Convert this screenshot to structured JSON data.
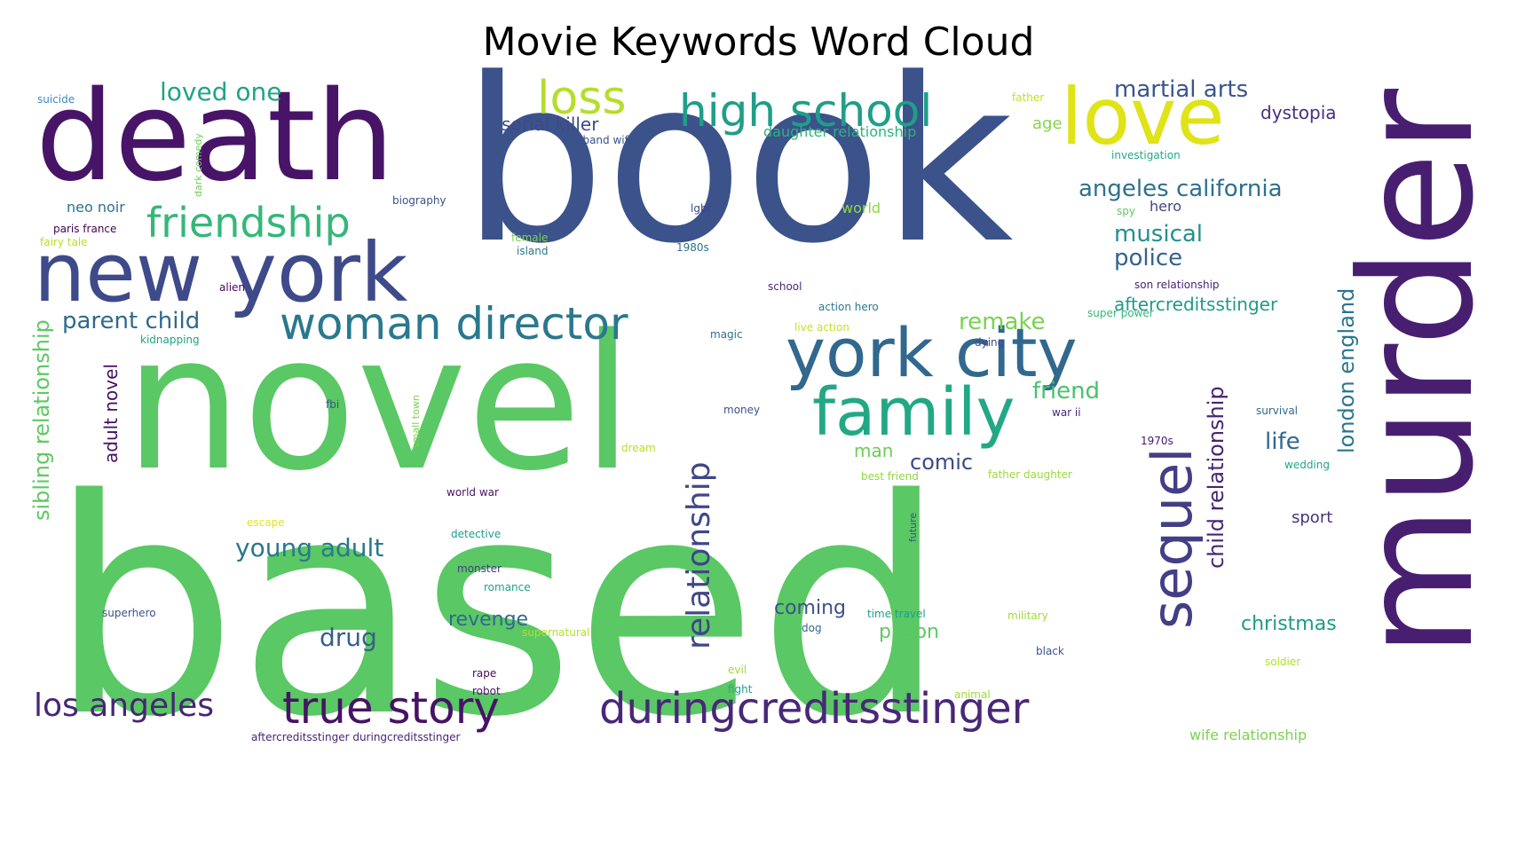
{
  "title": "Movie Keywords Word Cloud",
  "palette": {
    "purple": "#440154",
    "darkpurple": "#46327e",
    "blue": "#365c8d",
    "teal": "#277f8e",
    "tealgreen": "#1fa187",
    "green": "#4ac16d",
    "lime": "#a0da39",
    "yellow": "#e4e419"
  },
  "words": [
    {
      "text": "based",
      "color": "#5ac864"
    },
    {
      "text": "novel",
      "color": "#5ac864"
    },
    {
      "text": "book",
      "color": "#3b528b"
    },
    {
      "text": "murder",
      "color": "#481f70"
    },
    {
      "text": "death",
      "color": "#481467"
    },
    {
      "text": "new york",
      "color": "#3e4a89"
    },
    {
      "text": "love",
      "color": "#dfe318"
    },
    {
      "text": "york city",
      "color": "#31688e"
    },
    {
      "text": "family",
      "color": "#22a884"
    },
    {
      "text": "woman director",
      "color": "#2a788e"
    },
    {
      "text": "sequel",
      "color": "#433e85"
    },
    {
      "text": "relationship",
      "color": "#404688"
    },
    {
      "text": "duringcreditsstinger",
      "color": "#482878"
    },
    {
      "text": "true story",
      "color": "#471365"
    },
    {
      "text": "los angeles",
      "color": "#482475"
    },
    {
      "text": "high school",
      "color": "#1f9e89"
    },
    {
      "text": "friendship",
      "color": "#35b779"
    },
    {
      "text": "loss",
      "color": "#b5de2b"
    },
    {
      "text": "loved one",
      "color": "#20a386"
    },
    {
      "text": "martial arts",
      "color": "#39568c"
    },
    {
      "text": "dystopia",
      "color": "#46307e"
    },
    {
      "text": "angeles california",
      "color": "#2d708e"
    },
    {
      "text": "musical",
      "color": "#21918c"
    },
    {
      "text": "police",
      "color": "#33638d"
    },
    {
      "text": "aftercreditsstinger",
      "color": "#1f9a8a"
    },
    {
      "text": "london england",
      "color": "#2a768e"
    },
    {
      "text": "child relationship",
      "color": "#482475"
    },
    {
      "text": "life",
      "color": "#31688e"
    },
    {
      "text": "christmas",
      "color": "#1f9a8a"
    },
    {
      "text": "sport",
      "color": "#46337e"
    },
    {
      "text": "wife relationship",
      "color": "#7ad151"
    },
    {
      "text": "serial killer",
      "color": "#3e4989"
    },
    {
      "text": "daughter relationship",
      "color": "#2db27d"
    },
    {
      "text": "age",
      "color": "#86d549"
    },
    {
      "text": "parent child",
      "color": "#31688e"
    },
    {
      "text": "sibling relationship",
      "color": "#5ec962"
    },
    {
      "text": "adult novel",
      "color": "#471063"
    },
    {
      "text": "young adult",
      "color": "#2a788e"
    },
    {
      "text": "drug",
      "color": "#355f8d"
    },
    {
      "text": "revenge",
      "color": "#31688e"
    },
    {
      "text": "coming",
      "color": "#3b528b"
    },
    {
      "text": "prison",
      "color": "#5ec962"
    },
    {
      "text": "remake",
      "color": "#7ad151"
    },
    {
      "text": "friend",
      "color": "#4ac16d"
    },
    {
      "text": "comic",
      "color": "#3e4989"
    },
    {
      "text": "man",
      "color": "#6ccd5a"
    },
    {
      "text": "neo noir",
      "color": "#2c728e"
    },
    {
      "text": "world",
      "color": "#8fd744"
    },
    {
      "text": "hero",
      "color": "#414487"
    },
    {
      "text": "suicide",
      "color": "#3b8bc2"
    },
    {
      "text": "father",
      "color": "#c2df23"
    },
    {
      "text": "husband wife",
      "color": "#3b528b"
    },
    {
      "text": "investigation",
      "color": "#22a884"
    },
    {
      "text": "dark comedy",
      "color": "#6ece58"
    },
    {
      "text": "biography",
      "color": "#3b528b"
    },
    {
      "text": "lgbt",
      "color": "#404688"
    },
    {
      "text": "spy",
      "color": "#5ec962"
    },
    {
      "text": "paris france",
      "color": "#440154"
    },
    {
      "text": "fairy tale",
      "color": "#b5de2b"
    },
    {
      "text": "female",
      "color": "#7ad151"
    },
    {
      "text": "island",
      "color": "#2a788e"
    },
    {
      "text": "1980s",
      "color": "#2c728e"
    },
    {
      "text": "alien",
      "color": "#46085c"
    },
    {
      "text": "school",
      "color": "#482878"
    },
    {
      "text": "son relationship",
      "color": "#482475"
    },
    {
      "text": "action hero",
      "color": "#2a788e"
    },
    {
      "text": "super power",
      "color": "#35b779"
    },
    {
      "text": "live action",
      "color": "#c8e020"
    },
    {
      "text": "magic",
      "color": "#2c728e"
    },
    {
      "text": "kidnapping",
      "color": "#20a386"
    },
    {
      "text": "dying",
      "color": "#3e4989"
    },
    {
      "text": "fbi",
      "color": "#3b528b"
    },
    {
      "text": "small town",
      "color": "#7ad151"
    },
    {
      "text": "money",
      "color": "#3b528b"
    },
    {
      "text": "survival",
      "color": "#31688e"
    },
    {
      "text": "war ii",
      "color": "#482878"
    },
    {
      "text": "1970s",
      "color": "#481a6c"
    },
    {
      "text": "dream",
      "color": "#b8de29"
    },
    {
      "text": "wedding",
      "color": "#22a884"
    },
    {
      "text": "best friend",
      "color": "#90d743"
    },
    {
      "text": "father daughter",
      "color": "#9dd93b"
    },
    {
      "text": "world war",
      "color": "#471365"
    },
    {
      "text": "escape",
      "color": "#e5e419"
    },
    {
      "text": "future",
      "color": "#3b528b"
    },
    {
      "text": "detective",
      "color": "#1f9e89"
    },
    {
      "text": "monster",
      "color": "#433e85"
    },
    {
      "text": "romance",
      "color": "#1f9e89"
    },
    {
      "text": "superhero",
      "color": "#3b528b"
    },
    {
      "text": "supernatural",
      "color": "#b5de2b"
    },
    {
      "text": "time travel",
      "color": "#1f9e89"
    },
    {
      "text": "military",
      "color": "#a5db36"
    },
    {
      "text": "dog",
      "color": "#31688e"
    },
    {
      "text": "black",
      "color": "#3b528b"
    },
    {
      "text": "rape",
      "color": "#46085c"
    },
    {
      "text": "evil",
      "color": "#9dd93b"
    },
    {
      "text": "soldier",
      "color": "#b5de2b"
    },
    {
      "text": "robot",
      "color": "#471063"
    },
    {
      "text": "fight",
      "color": "#20a386"
    },
    {
      "text": "animal",
      "color": "#a0da39"
    },
    {
      "text": "aftercreditsstinger duringcreditsstinger",
      "color": "#482475"
    }
  ]
}
